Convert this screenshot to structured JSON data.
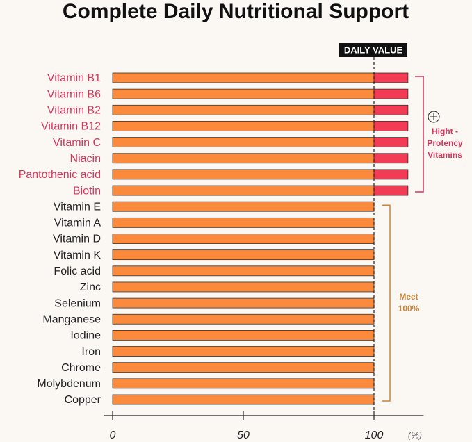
{
  "chart_data": {
    "type": "hbar",
    "title": "Complete Daily Nutritional Support",
    "categories": [
      "Vitamin B1",
      "Vitamin B6",
      "Vitamin B2",
      "Vitamin B12",
      "Vitamin C",
      "Niacin",
      "Pantothenic acid",
      "Biotin",
      "Vitamin E",
      "Vitamin A",
      "Vitamin D",
      "Vitamin K",
      "Folic acid",
      "Zinc",
      "Selenium",
      "Manganese",
      "Iodine",
      "Iron",
      "Chrome",
      "Molybdenum",
      "Copper"
    ],
    "values": [
      113,
      113,
      113,
      113,
      113,
      113,
      113,
      113,
      100,
      100,
      100,
      100,
      100,
      100,
      100,
      100,
      100,
      100,
      100,
      100,
      100
    ],
    "color": "#fb8a3c",
    "over_color": "#f23c55",
    "reference_line": {
      "value": 100,
      "label": "DAILY VALUE"
    },
    "xlim": [
      0,
      119
    ],
    "xticks": [
      0,
      50,
      100
    ],
    "x_unit": "(%)",
    "groups": [
      {
        "lines": [
          "Hight -",
          "Protency",
          "Vitamins"
        ],
        "from": 0,
        "to": 7,
        "color": "#d6345a"
      },
      {
        "lines": [
          "Meet",
          "100%"
        ],
        "from": 8,
        "to": 20,
        "color": "#c8843a"
      }
    ]
  }
}
